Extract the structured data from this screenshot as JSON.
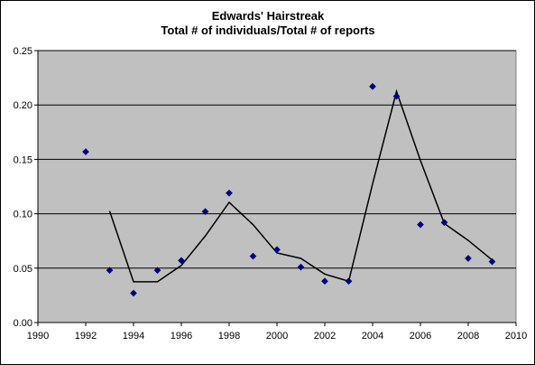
{
  "chart_data": {
    "type": "scatter",
    "title": [
      "Edwards' Hairstreak",
      "Total # of individuals/Total # of reports"
    ],
    "xlabel": "",
    "ylabel": "",
    "xlim": [
      1990,
      2010
    ],
    "ylim": [
      0,
      0.25
    ],
    "x_ticks": [
      "1990",
      "1992",
      "1994",
      "1996",
      "1998",
      "2000",
      "2002",
      "2004",
      "2006",
      "2008",
      "2010"
    ],
    "y_ticks": [
      "0.00",
      "0.05",
      "0.10",
      "0.15",
      "0.20",
      "0.25"
    ],
    "grid": "horizontal",
    "legend": "none",
    "plot_background": "#c0c0c0",
    "series": [
      {
        "type": "scatter",
        "marker": "diamond",
        "color": "#000080",
        "points": [
          [
            1992,
            0.157
          ],
          [
            1993,
            0.048
          ],
          [
            1994,
            0.027
          ],
          [
            1995,
            0.048
          ],
          [
            1996,
            0.057
          ],
          [
            1997,
            0.102
          ],
          [
            1998,
            0.119
          ],
          [
            1999,
            0.061
          ],
          [
            2000,
            0.067
          ],
          [
            2001,
            0.051
          ],
          [
            2002,
            0.038
          ],
          [
            2003,
            0.038
          ],
          [
            2004,
            0.217
          ],
          [
            2005,
            0.208
          ],
          [
            2006,
            0.09
          ],
          [
            2007,
            0.092
          ],
          [
            2008,
            0.059
          ],
          [
            2009,
            0.056
          ]
        ]
      },
      {
        "type": "line",
        "color": "#000000",
        "points": [
          [
            1993,
            0.1025
          ],
          [
            1994,
            0.0375
          ],
          [
            1995,
            0.0375
          ],
          [
            1996,
            0.0525
          ],
          [
            1997,
            0.0795
          ],
          [
            1998,
            0.1105
          ],
          [
            1999,
            0.09
          ],
          [
            2000,
            0.064
          ],
          [
            2001,
            0.059
          ],
          [
            2002,
            0.0445
          ],
          [
            2003,
            0.038
          ],
          [
            2004,
            0.1275
          ],
          [
            2005,
            0.2125
          ],
          [
            2006,
            0.149
          ],
          [
            2007,
            0.091
          ],
          [
            2008,
            0.0755
          ],
          [
            2009,
            0.0575
          ]
        ]
      }
    ]
  }
}
